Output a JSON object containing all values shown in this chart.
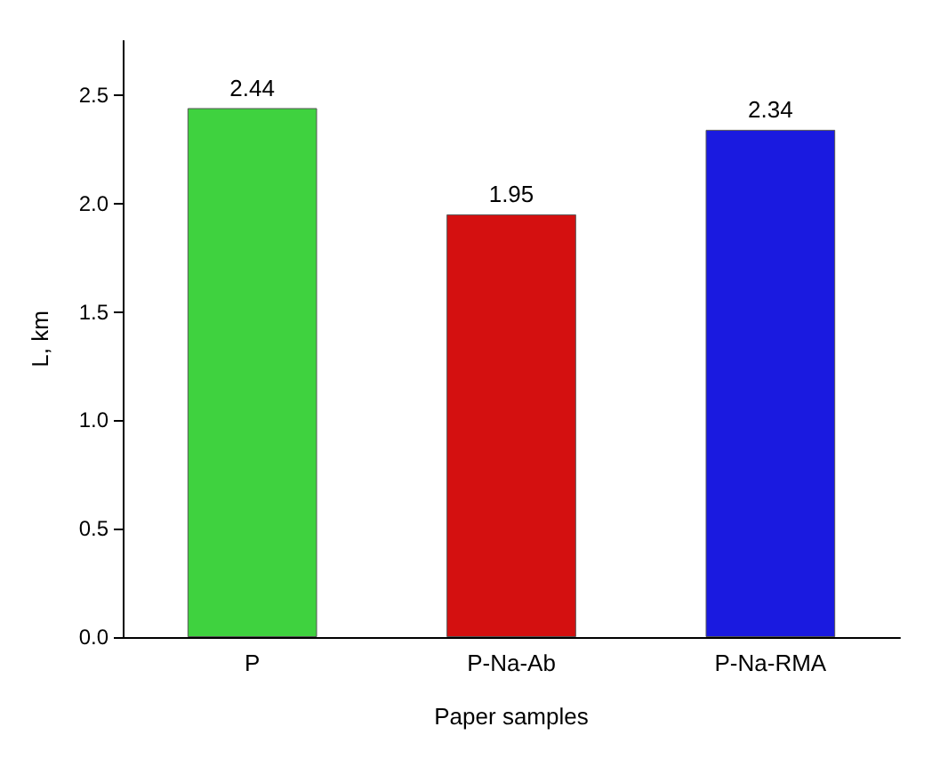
{
  "chart_data": {
    "type": "bar",
    "xlabel": "Paper samples",
    "ylabel": "L, km",
    "categories": [
      "P",
      "P-Na-Ab",
      "P-Na-RMA"
    ],
    "values": [
      2.44,
      1.95,
      2.34
    ],
    "colors": [
      "#3fd23f",
      "#d41010",
      "#1a1ae0"
    ],
    "ylim": [
      0,
      2.75
    ],
    "yticks": [
      {
        "value": 0,
        "label": "0.0"
      },
      0.5,
      {
        "value": 1,
        "label": "1.0"
      },
      1.5,
      {
        "value": 2,
        "label": "2.0"
      },
      2.5
    ],
    "data_labels": true,
    "grid": false
  }
}
